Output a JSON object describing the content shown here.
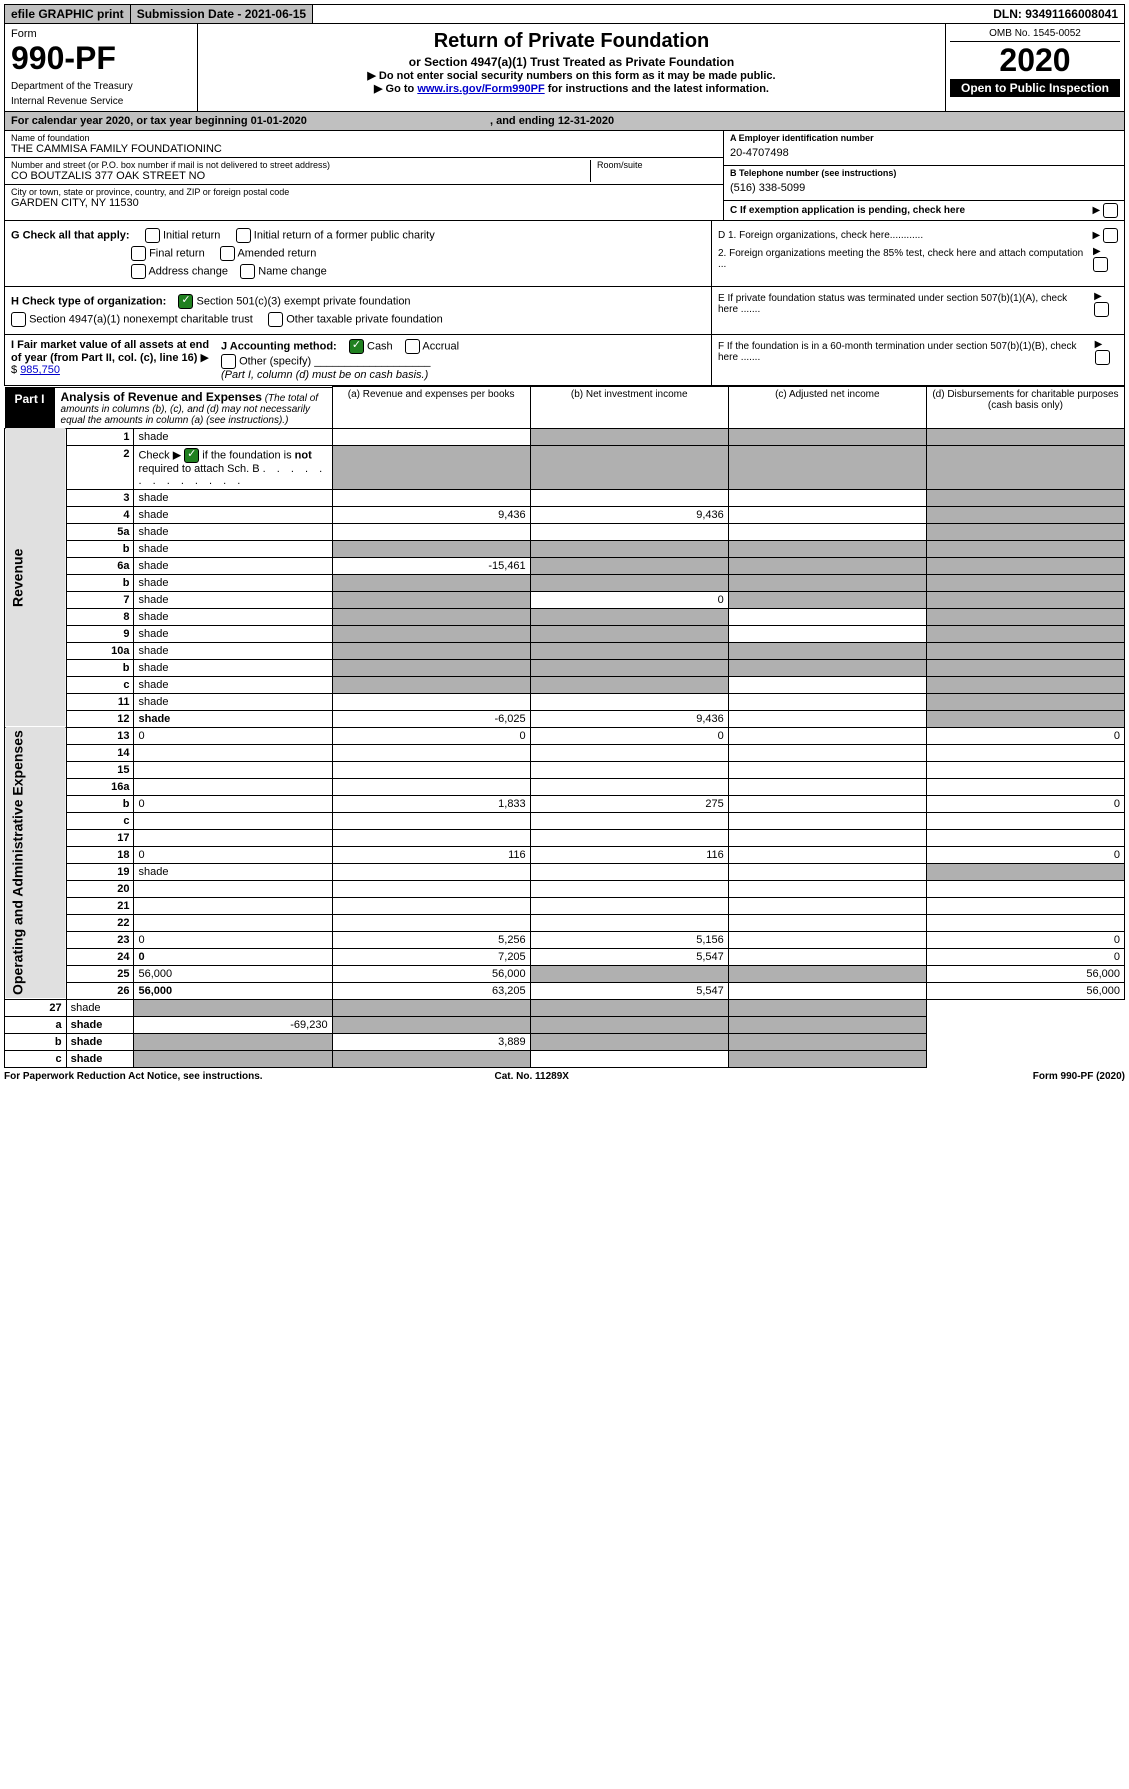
{
  "topbar": {
    "efile": "efile GRAPHIC print",
    "subdate_label": "Submission Date - 2021-06-15",
    "dln": "DLN: 93491166008041"
  },
  "header": {
    "form_word": "Form",
    "form_num": "990-PF",
    "dept1": "Department of the Treasury",
    "dept2": "Internal Revenue Service",
    "title": "Return of Private Foundation",
    "subtitle": "or Section 4947(a)(1) Trust Treated as Private Foundation",
    "instr1": "▶ Do not enter social security numbers on this form as it may be made public.",
    "instr2_pre": "▶ Go to ",
    "instr2_link": "www.irs.gov/Form990PF",
    "instr2_post": " for instructions and the latest information.",
    "omb": "OMB No. 1545-0052",
    "year": "2020",
    "open": "Open to Public Inspection"
  },
  "cal": {
    "text": "For calendar year 2020, or tax year beginning 01-01-2020",
    "ending": ", and ending 12-31-2020"
  },
  "info": {
    "name_lbl": "Name of foundation",
    "name_val": "THE CAMMISA FAMILY FOUNDATIONINC",
    "addr_lbl": "Number and street (or P.O. box number if mail is not delivered to street address)",
    "addr_val": "CO BOUTZALIS 377 OAK STREET NO",
    "room_lbl": "Room/suite",
    "city_lbl": "City or town, state or province, country, and ZIP or foreign postal code",
    "city_val": "GARDEN CITY, NY  11530",
    "a_lbl": "A Employer identification number",
    "a_val": "20-4707498",
    "b_lbl": "B Telephone number (see instructions)",
    "b_val": "(516) 338-5099",
    "c_lbl": "C If exemption application is pending, check here"
  },
  "g": {
    "label": "G Check all that apply:",
    "initial": "Initial return",
    "initial_former": "Initial return of a former public charity",
    "final": "Final return",
    "amended": "Amended return",
    "addr": "Address change",
    "name": "Name change"
  },
  "h": {
    "label": "H Check type of organization:",
    "c3": "Section 501(c)(3) exempt private foundation",
    "a1": "Section 4947(a)(1) nonexempt charitable trust",
    "other": "Other taxable private foundation"
  },
  "i": {
    "label": "I Fair market value of all assets at end of year (from Part II, col. (c), line 16)",
    "amount": "985,750"
  },
  "j": {
    "label": "J Accounting method:",
    "cash": "Cash",
    "accrual": "Accrual",
    "other": "Other (specify)",
    "note": "(Part I, column (d) must be on cash basis.)"
  },
  "d": {
    "d1": "D 1. Foreign organizations, check here............",
    "d2": "2. Foreign organizations meeting the 85% test, check here and attach computation ...",
    "e": "E  If private foundation status was terminated under section 507(b)(1)(A), check here .......",
    "f": "F  If the foundation is in a 60-month termination under section 507(b)(1)(B), check here ......."
  },
  "part1": {
    "label": "Part I",
    "title": "Analysis of Revenue and Expenses",
    "title_note": "(The total of amounts in columns (b), (c), and (d) may not necessarily equal the amounts in column (a) (see instructions).)",
    "col_a": "(a)    Revenue and expenses per books",
    "col_b": "(b)   Net investment income",
    "col_c": "(c)   Adjusted net income",
    "col_d": "(d)   Disbursements for charitable purposes (cash basis only)"
  },
  "vert": {
    "revenue": "Revenue",
    "opex": "Operating and Administrative Expenses"
  },
  "lines": [
    {
      "n": "1",
      "d": "shade",
      "a": "",
      "b": "shade",
      "c": "shade"
    },
    {
      "n": "2",
      "d": "shade",
      "a": "shade",
      "b": "shade",
      "c": "shade",
      "checked": true,
      "special": "ck"
    },
    {
      "n": "3",
      "d": "shade",
      "a": "",
      "b": "",
      "c": ""
    },
    {
      "n": "4",
      "d": "shade",
      "a": "9,436",
      "b": "9,436",
      "c": ""
    },
    {
      "n": "5a",
      "d": "shade",
      "a": "",
      "b": "",
      "c": ""
    },
    {
      "n": "b",
      "d": "shade",
      "a": "shade",
      "b": "shade",
      "c": "shade"
    },
    {
      "n": "6a",
      "d": "shade",
      "a": "-15,461",
      "b": "shade",
      "c": "shade"
    },
    {
      "n": "b",
      "d": "shade",
      "a": "shade",
      "b": "shade",
      "c": "shade"
    },
    {
      "n": "7",
      "d": "shade",
      "a": "shade",
      "b": "0",
      "c": "shade"
    },
    {
      "n": "8",
      "d": "shade",
      "a": "shade",
      "b": "shade",
      "c": ""
    },
    {
      "n": "9",
      "d": "shade",
      "a": "shade",
      "b": "shade",
      "c": ""
    },
    {
      "n": "10a",
      "d": "shade",
      "a": "shade",
      "b": "shade",
      "c": "shade"
    },
    {
      "n": "b",
      "d": "shade",
      "a": "shade",
      "b": "shade",
      "c": "shade"
    },
    {
      "n": "c",
      "d": "shade",
      "a": "shade",
      "b": "shade",
      "c": ""
    },
    {
      "n": "11",
      "d": "shade",
      "a": "",
      "b": "",
      "c": ""
    },
    {
      "n": "12",
      "d": "shade",
      "a": "-6,025",
      "b": "9,436",
      "c": "",
      "bold": true
    }
  ],
  "oplines": [
    {
      "n": "13",
      "d": "0",
      "a": "0",
      "b": "0",
      "c": ""
    },
    {
      "n": "14",
      "d": "",
      "a": "",
      "b": "",
      "c": ""
    },
    {
      "n": "15",
      "d": "",
      "a": "",
      "b": "",
      "c": ""
    },
    {
      "n": "16a",
      "d": "",
      "a": "",
      "b": "",
      "c": ""
    },
    {
      "n": "b",
      "d": "0",
      "a": "1,833",
      "b": "275",
      "c": ""
    },
    {
      "n": "c",
      "d": "",
      "a": "",
      "b": "",
      "c": ""
    },
    {
      "n": "17",
      "d": "",
      "a": "",
      "b": "",
      "c": ""
    },
    {
      "n": "18",
      "d": "0",
      "a": "116",
      "b": "116",
      "c": ""
    },
    {
      "n": "19",
      "d": "shade",
      "a": "",
      "b": "",
      "c": ""
    },
    {
      "n": "20",
      "d": "",
      "a": "",
      "b": "",
      "c": ""
    },
    {
      "n": "21",
      "d": "",
      "a": "",
      "b": "",
      "c": ""
    },
    {
      "n": "22",
      "d": "",
      "a": "",
      "b": "",
      "c": ""
    },
    {
      "n": "23",
      "d": "0",
      "a": "5,256",
      "b": "5,156",
      "c": ""
    },
    {
      "n": "24",
      "d": "0",
      "a": "7,205",
      "b": "5,547",
      "c": "",
      "bold": true
    },
    {
      "n": "25",
      "d": "56,000",
      "a": "56,000",
      "b": "shade",
      "c": "shade"
    },
    {
      "n": "26",
      "d": "56,000",
      "a": "63,205",
      "b": "5,547",
      "c": "",
      "bold": true
    }
  ],
  "sublines": [
    {
      "n": "27",
      "d": "shade",
      "a": "shade",
      "b": "shade",
      "c": "shade"
    },
    {
      "n": "a",
      "d": "shade",
      "a": "-69,230",
      "b": "shade",
      "c": "shade",
      "bold": true
    },
    {
      "n": "b",
      "d": "shade",
      "a": "shade",
      "b": "3,889",
      "c": "shade",
      "bold": true
    },
    {
      "n": "c",
      "d": "shade",
      "a": "shade",
      "b": "shade",
      "c": "",
      "bold": true
    }
  ],
  "footer": {
    "left": "For Paperwork Reduction Act Notice, see instructions.",
    "mid": "Cat. No. 11289X",
    "right": "Form 990-PF (2020)"
  }
}
